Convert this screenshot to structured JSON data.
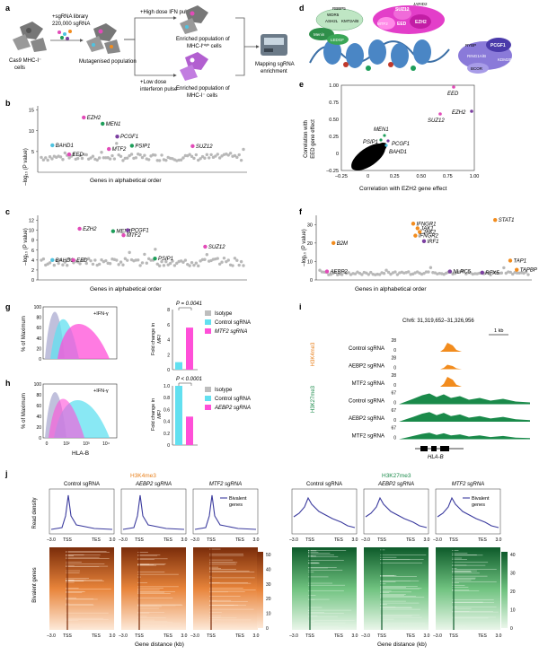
{
  "panels": {
    "a": {
      "letter": "a",
      "cells_label": [
        "Cas9 MHC-I⁻",
        "cells"
      ],
      "library_label": [
        "+sgRNA library",
        "220,000 sgRNA"
      ],
      "mutagenised": "Mutagenised population",
      "high_dose": "+High dose IFN pulse",
      "low_dose": [
        "+Low dose",
        "interferon pulse"
      ],
      "enriched_high": [
        "Enriched population of",
        "MHC-I",
        "high",
        " cells"
      ],
      "enriched_low": [
        "Enriched population of",
        "MHC-I⁻ cells"
      ],
      "mapping": [
        "Mapping sgRNA",
        "enrichment"
      ]
    },
    "b": {
      "letter": "b",
      "ylabel": "–log₁₀ (P value)",
      "xlabel": "Genes in alphabetical order",
      "yticks": [
        "5",
        "10",
        "15"
      ],
      "ylim": [
        0,
        16
      ],
      "hits": [
        {
          "name": "EZH2",
          "x": 0.22,
          "y": 13.2,
          "color": "#e24bb8"
        },
        {
          "name": "MEN1",
          "x": 0.31,
          "y": 11.7,
          "color": "#1e9e5a"
        },
        {
          "name": "PCGF1",
          "x": 0.38,
          "y": 8.6,
          "color": "#7b3fa0"
        },
        {
          "name": "BAHD1",
          "x": 0.07,
          "y": 6.5,
          "color": "#4fc3e0"
        },
        {
          "name": "PSIP1",
          "x": 0.45,
          "y": 6.4,
          "color": "#1e9e5a"
        },
        {
          "name": "MTF2",
          "x": 0.34,
          "y": 5.6,
          "color": "#e24bb8"
        },
        {
          "name": "SUZ12",
          "x": 0.74,
          "y": 6.3,
          "color": "#e24bb8"
        },
        {
          "name": "EED",
          "x": 0.15,
          "y": 4.3,
          "color": "#e24bb8"
        }
      ]
    },
    "c": {
      "letter": "c",
      "ylabel": "–log₁₀ (P value)",
      "xlabel": "Genes in alphabetical order",
      "yticks": [
        "0",
        "2",
        "4",
        "6",
        "8",
        "10",
        "12"
      ],
      "ylim": [
        0,
        13
      ],
      "hits": [
        {
          "name": "EZH2",
          "x": 0.2,
          "y": 10.3,
          "color": "#e24bb8"
        },
        {
          "name": "MEN1",
          "x": 0.36,
          "y": 9.8,
          "color": "#1e9e5a"
        },
        {
          "name": "PCGF1",
          "x": 0.43,
          "y": 10.0,
          "color": "#7b3fa0"
        },
        {
          "name": "MTF2",
          "x": 0.41,
          "y": 9.0,
          "color": "#e24bb8"
        },
        {
          "name": "SUZ12",
          "x": 0.8,
          "y": 6.7,
          "color": "#e24bb8"
        },
        {
          "name": "BAHD1",
          "x": 0.07,
          "y": 4.0,
          "color": "#4fc3e0"
        },
        {
          "name": "EED",
          "x": 0.17,
          "y": 4.0,
          "color": "#e24bb8"
        },
        {
          "name": "PSIP1",
          "x": 0.56,
          "y": 4.3,
          "color": "#1e9e5a"
        }
      ]
    },
    "d": {
      "letter": "d",
      "complex_labels": [
        "PRC2",
        "SUZ12",
        "EED",
        "EZH2",
        "MTF2",
        "JARID2",
        "AEBP2",
        "RBBP4",
        "RING1A/B",
        "RYBP",
        "PCGF1",
        "KDM2B",
        "BCOR",
        "WDR5",
        "ASH2L",
        "KMT2A/B",
        "RBBP5",
        "Menin",
        "LEDGF"
      ]
    },
    "e": {
      "letter": "e",
      "ylabel": [
        "Correlation with",
        "EED gene effect"
      ],
      "xlabel": "Correlation with EZH2 gene effect",
      "xticks": [
        "–0.25",
        "0",
        "0.25",
        "0.50",
        "0.75",
        "1.00"
      ],
      "yticks": [
        "–0.25",
        "0",
        "0.25",
        "0.50",
        "0.75",
        "1.00"
      ],
      "labels": [
        "EED",
        "EZH2",
        "SUZ12",
        "MEN1",
        "PSIP1",
        "PCGF1",
        "BAHD1"
      ]
    },
    "f": {
      "letter": "f",
      "ylabel": "–log₁₀ (P value)",
      "xlabel": "Genes in alphabetical order",
      "yticks": [
        "0",
        "10",
        "20",
        "30"
      ],
      "ylim": [
        0,
        35
      ],
      "hits": [
        {
          "name": "STAT1",
          "x": 0.83,
          "y": 32.5,
          "color": "#f28c1e"
        },
        {
          "name": "IFNGR1",
          "x": 0.45,
          "y": 30.5,
          "color": "#f28c1e"
        },
        {
          "name": "JAK1",
          "x": 0.47,
          "y": 28.0,
          "color": "#f28c1e"
        },
        {
          "name": "JAK2",
          "x": 0.48,
          "y": 26.0,
          "color": "#f28c1e"
        },
        {
          "name": "IFNGR2",
          "x": 0.46,
          "y": 24.0,
          "color": "#f28c1e"
        },
        {
          "name": "IRF1",
          "x": 0.5,
          "y": 21.0,
          "color": "#7b3fa0"
        },
        {
          "name": "B2M",
          "x": 0.08,
          "y": 20.0,
          "color": "#f28c1e"
        },
        {
          "name": "TAP1",
          "x": 0.9,
          "y": 10.5,
          "color": "#f28c1e"
        },
        {
          "name": "AEBP2",
          "x": 0.05,
          "y": 4.6,
          "color": "#e24bb8"
        },
        {
          "name": "NLRC5",
          "x": 0.62,
          "y": 4.6,
          "color": "#7b3fa0"
        },
        {
          "name": "RFX5",
          "x": 0.77,
          "y": 4.0,
          "color": "#7b3fa0"
        },
        {
          "name": "TAPBP",
          "x": 0.93,
          "y": 5.5,
          "color": "#f28c1e"
        }
      ]
    },
    "g": {
      "letter": "g",
      "ylabel": "% of Maximum",
      "yticks": [
        "0",
        "20",
        "40",
        "60",
        "80",
        "100"
      ],
      "treatment": "+IFN-γ",
      "pvalue": "P = 0.0041",
      "bar_ylabel": [
        "Fold change in",
        "MFI"
      ],
      "bar_yticks": [
        "0",
        "2",
        "4",
        "6",
        "8"
      ],
      "bar_ylim": [
        0,
        8
      ],
      "bars": [
        {
          "name": "Control sgRNA",
          "value": 1.0,
          "color": "#62e0f0"
        },
        {
          "name": "MTF2 sgRNA",
          "value": 5.6,
          "color": "#ff4fd8"
        }
      ],
      "legend": [
        {
          "label": "Isotype",
          "color": "#bdbdbd"
        },
        {
          "label": "Control sgRNA",
          "color": "#62e0f0"
        },
        {
          "label": "MTF2 sgRNA",
          "color": "#ff4fd8"
        }
      ]
    },
    "h": {
      "letter": "h",
      "ylabel": "% of Maximum",
      "xlabel": "HLA-B",
      "yticks": [
        "0",
        "20",
        "40",
        "60",
        "80",
        "100"
      ],
      "xticks": [
        "0",
        "10²",
        "10³",
        "10⁴"
      ],
      "treatment": "+IFN-γ",
      "pvalue": "P < 0.0001",
      "bar_ylabel": [
        "Fold change in",
        "MFI"
      ],
      "bar_yticks": [
        "0",
        "0.2",
        "0.4",
        "0.6",
        "0.8",
        "1.0"
      ],
      "bar_ylim": [
        0,
        1.0
      ],
      "bars": [
        {
          "name": "Control sgRNA",
          "value": 1.0,
          "color": "#62e0f0"
        },
        {
          "name": "AEBP2 sgRNA",
          "value": 0.48,
          "color": "#ff4fd8"
        }
      ],
      "legend": [
        {
          "label": "Isotype",
          "color": "#bdbdbd"
        },
        {
          "label": "Control sgRNA",
          "color": "#62e0f0"
        },
        {
          "label": "AEBP2 sgRNA",
          "color": "#ff4fd8"
        }
      ]
    },
    "i": {
      "letter": "i",
      "locus": "Chr6: 31,319,652–31,326,956",
      "scale": "1 kb",
      "gene": "HLA-B",
      "mark1": "H3K4me3",
      "mark2": "H3K27me3",
      "tracks": [
        {
          "label": "Control sgRNA",
          "max": "28",
          "mark": "k4"
        },
        {
          "label": "AEBP2 sgRNA",
          "max": "28",
          "mark": "k4"
        },
        {
          "label": "MTF2 sgRNA",
          "max": "28",
          "mark": "k4"
        },
        {
          "label": "Control sgRNA",
          "max": "67",
          "mark": "k27"
        },
        {
          "label": "AEBP2 sgRNA",
          "max": "67",
          "mark": "k27"
        },
        {
          "label": "MTF2 sgRNA",
          "max": "67",
          "mark": "k27"
        }
      ],
      "zero": "0"
    },
    "j": {
      "letter": "j",
      "title_k4": "H3K4me3",
      "title_k27": "H3K27me3",
      "samples": [
        "Control sgRNA",
        "AEBP2 sgRNA",
        "MTF2 sgRNA"
      ],
      "legend_label": [
        "Bivalent",
        "genes"
      ],
      "ylabel_profile": "Read density",
      "ylabel_heat": "Bivalent genes",
      "xticks": [
        "–3.0",
        "TSS",
        "TES",
        "3.0"
      ],
      "xlabel": "Gene distance (kb)",
      "cbar_k4": [
        "50",
        "40",
        "30",
        "20",
        "10",
        "0"
      ],
      "cbar_k27": [
        "40",
        "30",
        "20",
        "10",
        "0"
      ]
    }
  },
  "colors": {
    "magenta": "#e24bb8",
    "green": "#1e9e5a",
    "purple": "#7b3fa0",
    "cyan": "#4fc3e0",
    "orange": "#f28c1e",
    "k4_orange": "#e87f1a",
    "k27_green": "#1a8a4a",
    "grey": "#b0b0b0"
  }
}
